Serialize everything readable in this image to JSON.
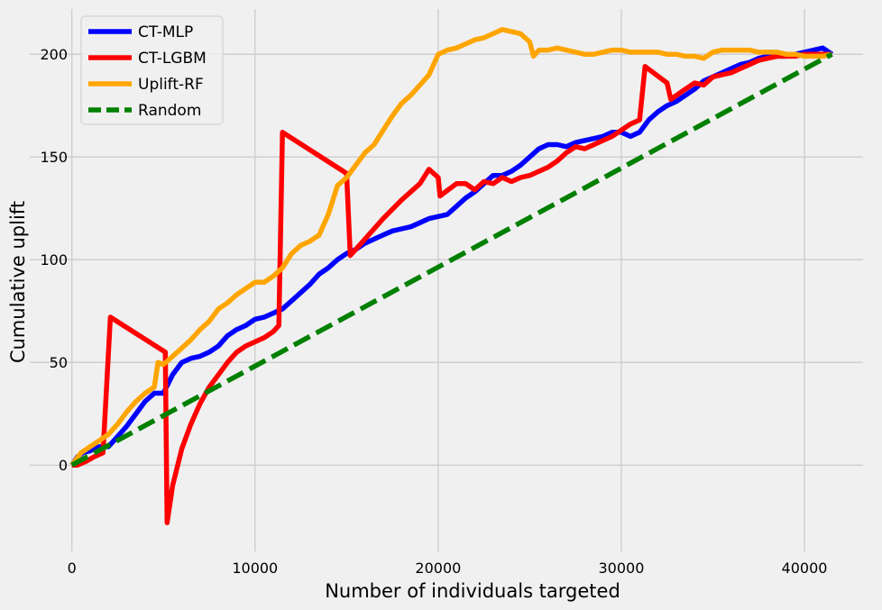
{
  "chart_data": {
    "type": "line",
    "title": "",
    "xlabel": "Number of individuals targeted",
    "ylabel": "Cumulative uplift",
    "xlim": [
      -2300,
      43200
    ],
    "ylim": [
      -42,
      222
    ],
    "xticks": [
      0,
      10000,
      20000,
      30000,
      40000
    ],
    "yticks": [
      0,
      50,
      100,
      150,
      200
    ],
    "grid": true,
    "legend_position": "top-left",
    "series": [
      {
        "name": "CT-MLP",
        "color": "#0000ff",
        "dash": "solid",
        "points": [
          [
            0,
            0
          ],
          [
            300,
            4
          ],
          [
            600,
            6
          ],
          [
            1000,
            7
          ],
          [
            1500,
            9
          ],
          [
            2000,
            9
          ],
          [
            2500,
            14
          ],
          [
            3000,
            19
          ],
          [
            3500,
            25
          ],
          [
            4000,
            31
          ],
          [
            4500,
            35
          ],
          [
            5000,
            35
          ],
          [
            5500,
            44
          ],
          [
            6000,
            50
          ],
          [
            6500,
            52
          ],
          [
            7000,
            53
          ],
          [
            7500,
            55
          ],
          [
            8000,
            58
          ],
          [
            8500,
            63
          ],
          [
            9000,
            66
          ],
          [
            9500,
            68
          ],
          [
            10000,
            71
          ],
          [
            10500,
            72
          ],
          [
            11000,
            74
          ],
          [
            11500,
            76
          ],
          [
            12000,
            80
          ],
          [
            12500,
            84
          ],
          [
            13000,
            88
          ],
          [
            13500,
            93
          ],
          [
            14000,
            96
          ],
          [
            14500,
            100
          ],
          [
            15000,
            103
          ],
          [
            15500,
            105
          ],
          [
            16000,
            108
          ],
          [
            16500,
            110
          ],
          [
            17000,
            112
          ],
          [
            17500,
            114
          ],
          [
            18000,
            115
          ],
          [
            18500,
            116
          ],
          [
            19000,
            118
          ],
          [
            19500,
            120
          ],
          [
            20000,
            121
          ],
          [
            20500,
            122
          ],
          [
            21000,
            126
          ],
          [
            21500,
            130
          ],
          [
            22000,
            133
          ],
          [
            22500,
            137
          ],
          [
            23000,
            141
          ],
          [
            23500,
            141
          ],
          [
            24000,
            143
          ],
          [
            24500,
            146
          ],
          [
            25000,
            150
          ],
          [
            25500,
            154
          ],
          [
            26000,
            156
          ],
          [
            26500,
            156
          ],
          [
            27000,
            155
          ],
          [
            27500,
            157
          ],
          [
            28000,
            158
          ],
          [
            28500,
            159
          ],
          [
            29000,
            160
          ],
          [
            29500,
            162
          ],
          [
            30000,
            162
          ],
          [
            30500,
            160
          ],
          [
            31000,
            162
          ],
          [
            31500,
            168
          ],
          [
            32000,
            172
          ],
          [
            32500,
            175
          ],
          [
            33000,
            177
          ],
          [
            33500,
            180
          ],
          [
            34000,
            183
          ],
          [
            34500,
            187
          ],
          [
            35000,
            189
          ],
          [
            35500,
            191
          ],
          [
            36000,
            193
          ],
          [
            36500,
            195
          ],
          [
            37000,
            196
          ],
          [
            37500,
            198
          ],
          [
            38000,
            199
          ],
          [
            38500,
            199
          ],
          [
            39000,
            199
          ],
          [
            39500,
            200
          ],
          [
            40000,
            201
          ],
          [
            40500,
            202
          ],
          [
            41000,
            203
          ],
          [
            41500,
            200
          ]
        ]
      },
      {
        "name": "CT-LGBM",
        "color": "#ff0000",
        "dash": "solid",
        "points": [
          [
            0,
            0
          ],
          [
            300,
            0
          ],
          [
            800,
            2
          ],
          [
            1200,
            4
          ],
          [
            1700,
            6
          ],
          [
            2100,
            72
          ],
          [
            5100,
            55
          ],
          [
            5200,
            -28
          ],
          [
            5500,
            -10
          ],
          [
            6000,
            8
          ],
          [
            6500,
            20
          ],
          [
            7000,
            30
          ],
          [
            7500,
            38
          ],
          [
            8000,
            44
          ],
          [
            8500,
            50
          ],
          [
            9000,
            55
          ],
          [
            9500,
            58
          ],
          [
            10000,
            60
          ],
          [
            10500,
            62
          ],
          [
            11000,
            65
          ],
          [
            11300,
            68
          ],
          [
            11500,
            162
          ],
          [
            15000,
            142
          ],
          [
            15200,
            102
          ],
          [
            16000,
            110
          ],
          [
            17000,
            120
          ],
          [
            18000,
            129
          ],
          [
            19000,
            137
          ],
          [
            19500,
            144
          ],
          [
            20000,
            140
          ],
          [
            20100,
            131
          ],
          [
            21000,
            137
          ],
          [
            21500,
            137
          ],
          [
            22000,
            134
          ],
          [
            22500,
            138
          ],
          [
            23000,
            137
          ],
          [
            23500,
            140
          ],
          [
            24000,
            138
          ],
          [
            24500,
            140
          ],
          [
            25000,
            141
          ],
          [
            25500,
            143
          ],
          [
            26000,
            145
          ],
          [
            26500,
            148
          ],
          [
            27000,
            152
          ],
          [
            27500,
            155
          ],
          [
            28000,
            154
          ],
          [
            28500,
            156
          ],
          [
            29000,
            158
          ],
          [
            29500,
            160
          ],
          [
            30000,
            163
          ],
          [
            30500,
            166
          ],
          [
            31000,
            168
          ],
          [
            31300,
            194
          ],
          [
            32500,
            186
          ],
          [
            32700,
            178
          ],
          [
            33500,
            183
          ],
          [
            34000,
            186
          ],
          [
            34500,
            185
          ],
          [
            35000,
            189
          ],
          [
            35500,
            190
          ],
          [
            36000,
            191
          ],
          [
            36500,
            193
          ],
          [
            37000,
            195
          ],
          [
            37500,
            197
          ],
          [
            38000,
            198
          ],
          [
            38500,
            199
          ],
          [
            39000,
            199
          ],
          [
            39500,
            199
          ],
          [
            40000,
            200
          ],
          [
            40500,
            200
          ],
          [
            41000,
            200
          ],
          [
            41500,
            200
          ]
        ]
      },
      {
        "name": "Uplift-RF",
        "color": "#ffa500",
        "dash": "solid",
        "points": [
          [
            0,
            0
          ],
          [
            500,
            6
          ],
          [
            1000,
            9
          ],
          [
            1500,
            12
          ],
          [
            2000,
            15
          ],
          [
            2500,
            20
          ],
          [
            3000,
            26
          ],
          [
            3500,
            31
          ],
          [
            4000,
            35
          ],
          [
            4500,
            38
          ],
          [
            4700,
            50
          ],
          [
            5000,
            49
          ],
          [
            5500,
            53
          ],
          [
            6000,
            57
          ],
          [
            6500,
            61
          ],
          [
            7000,
            66
          ],
          [
            7500,
            70
          ],
          [
            8000,
            76
          ],
          [
            8500,
            79
          ],
          [
            9000,
            83
          ],
          [
            9500,
            86
          ],
          [
            10000,
            89
          ],
          [
            10500,
            89
          ],
          [
            11000,
            92
          ],
          [
            11500,
            96
          ],
          [
            12000,
            103
          ],
          [
            12500,
            107
          ],
          [
            13000,
            109
          ],
          [
            13500,
            112
          ],
          [
            14000,
            122
          ],
          [
            14500,
            136
          ],
          [
            15000,
            140
          ],
          [
            15500,
            146
          ],
          [
            16000,
            152
          ],
          [
            16500,
            156
          ],
          [
            17000,
            163
          ],
          [
            17500,
            170
          ],
          [
            18000,
            176
          ],
          [
            18500,
            180
          ],
          [
            19000,
            185
          ],
          [
            19500,
            190
          ],
          [
            20000,
            200
          ],
          [
            20500,
            202
          ],
          [
            21000,
            203
          ],
          [
            21500,
            205
          ],
          [
            22000,
            207
          ],
          [
            22500,
            208
          ],
          [
            23000,
            210
          ],
          [
            23500,
            212
          ],
          [
            24000,
            211
          ],
          [
            24500,
            210
          ],
          [
            25000,
            206
          ],
          [
            25200,
            199
          ],
          [
            25500,
            202
          ],
          [
            26000,
            202
          ],
          [
            26500,
            203
          ],
          [
            27000,
            202
          ],
          [
            27500,
            201
          ],
          [
            28000,
            200
          ],
          [
            28500,
            200
          ],
          [
            29000,
            201
          ],
          [
            29500,
            202
          ],
          [
            30000,
            202
          ],
          [
            30500,
            201
          ],
          [
            31000,
            201
          ],
          [
            31500,
            201
          ],
          [
            32000,
            201
          ],
          [
            32500,
            200
          ],
          [
            33000,
            200
          ],
          [
            33500,
            199
          ],
          [
            34000,
            199
          ],
          [
            34500,
            198
          ],
          [
            35000,
            201
          ],
          [
            35500,
            202
          ],
          [
            36000,
            202
          ],
          [
            36500,
            202
          ],
          [
            37000,
            202
          ],
          [
            37500,
            201
          ],
          [
            38000,
            201
          ],
          [
            38500,
            201
          ],
          [
            39000,
            200
          ],
          [
            39500,
            200
          ],
          [
            40000,
            199
          ],
          [
            40500,
            199
          ],
          [
            41000,
            199
          ],
          [
            41500,
            200
          ]
        ]
      },
      {
        "name": "Random",
        "color": "#008000",
        "dash": "dashed",
        "points": [
          [
            0,
            0
          ],
          [
            41500,
            200
          ]
        ]
      }
    ]
  }
}
